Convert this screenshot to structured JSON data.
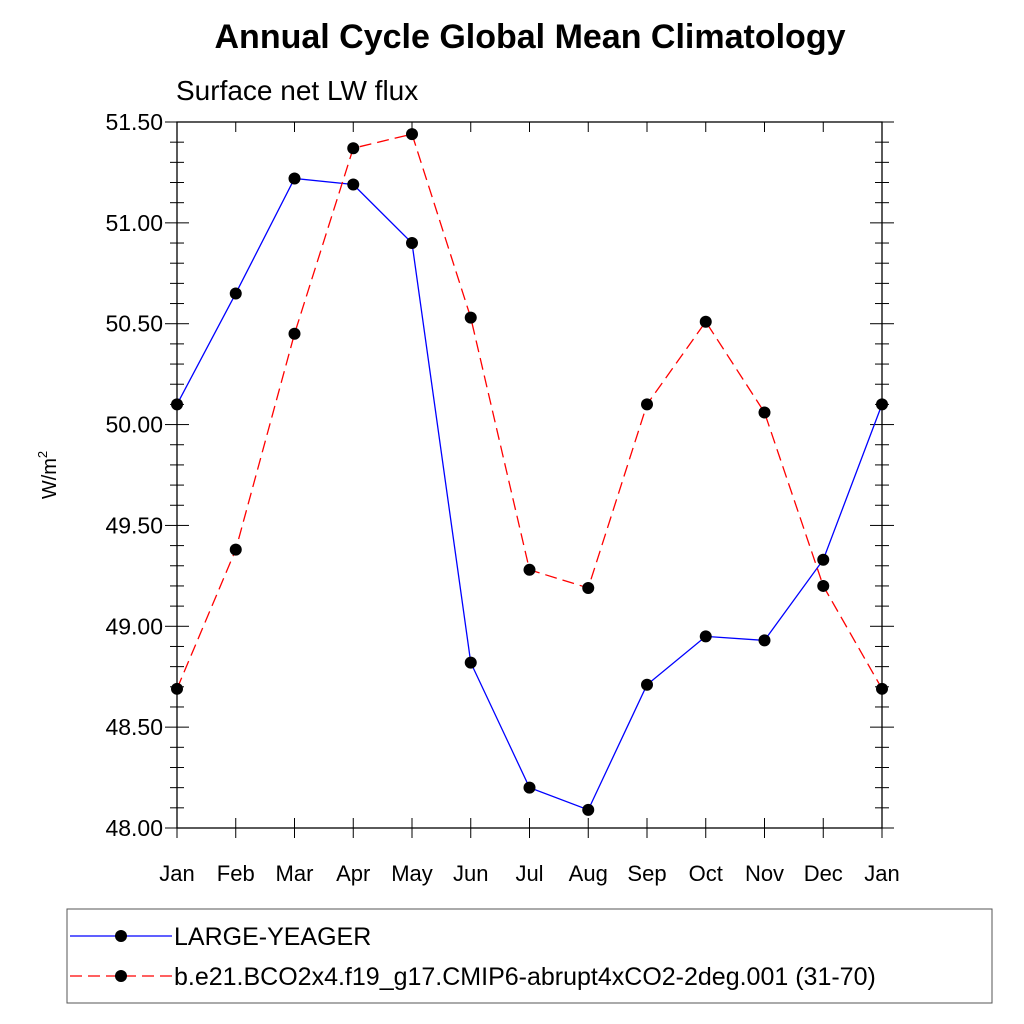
{
  "chart_data": {
    "type": "line",
    "title": "Annual Cycle Global Mean Climatology",
    "subtitle": "Surface net LW flux",
    "ylabel": "W/m",
    "ylabel_sup": "2",
    "xlabel": "",
    "categories": [
      "Jan",
      "Feb",
      "Mar",
      "Apr",
      "May",
      "Jun",
      "Jul",
      "Aug",
      "Sep",
      "Oct",
      "Nov",
      "Dec",
      "Jan"
    ],
    "ylim": [
      48.0,
      51.5
    ],
    "yticks": [
      "48.00",
      "48.50",
      "49.00",
      "49.50",
      "50.00",
      "50.50",
      "51.00",
      "51.50"
    ],
    "series": [
      {
        "name": "LARGE-YEAGER",
        "color": "#0000ff",
        "style": "solid",
        "values": [
          50.1,
          50.65,
          51.22,
          51.19,
          50.9,
          48.82,
          48.2,
          48.09,
          48.71,
          48.95,
          48.93,
          49.33,
          50.1
        ]
      },
      {
        "name": "b.e21.BCO2x4.f19_g17.CMIP6-abrupt4xCO2-2deg.001 (31-70)",
        "color": "#ff0000",
        "style": "dashed",
        "values": [
          48.69,
          49.38,
          50.45,
          51.37,
          51.44,
          50.53,
          49.28,
          49.19,
          50.1,
          50.51,
          50.06,
          49.2,
          48.69
        ]
      }
    ],
    "legend_position": "bottom"
  }
}
